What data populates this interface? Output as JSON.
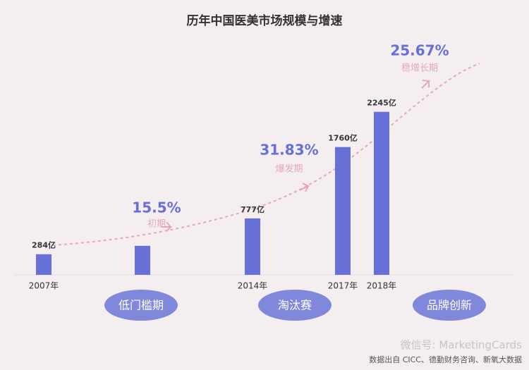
{
  "chart_data": {
    "type": "bar",
    "title": "历年中国医美市场规模与增速",
    "categories": [
      "2007年",
      null,
      "2014年",
      "2017年",
      "2018年"
    ],
    "values": [
      284,
      400,
      777,
      1760,
      2245
    ],
    "value_labels": [
      "284亿",
      null,
      "777亿",
      "1760亿",
      "2245亿"
    ],
    "color": "#6670d6",
    "ylim": [
      0,
      2300
    ],
    "growth": [
      {
        "rate": "15.5%",
        "stage": "初期"
      },
      {
        "rate": "31.83%",
        "stage": "爆发期"
      },
      {
        "rate": "25.67%",
        "stage": "稳增长期"
      }
    ],
    "phases": [
      "低门槛期",
      "淘汰赛",
      "品牌创新"
    ],
    "watermark": "微信号: MarketingCards",
    "source": "数据出自 CICC、德勤财务咨询、新氧大数据"
  }
}
